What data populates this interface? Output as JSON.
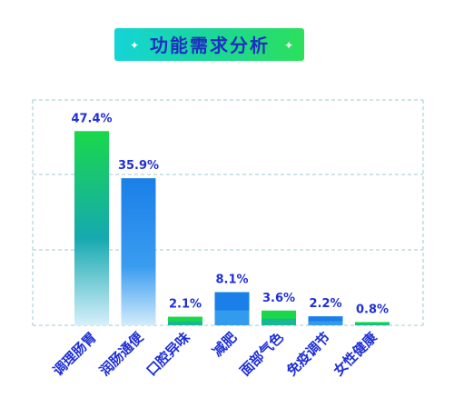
{
  "chart_data": {
    "type": "bar",
    "title": "功能需求分析",
    "categories": [
      "调理肠胃",
      "润肠通便",
      "口腔异味",
      "减肥",
      "面部气色",
      "免疫调节",
      "女性健康"
    ],
    "values": [
      47.4,
      35.9,
      2.1,
      8.1,
      3.6,
      2.2,
      0.8
    ],
    "value_labels": [
      "47.4%",
      "35.9%",
      "2.1%",
      "8.1%",
      "3.6%",
      "2.2%",
      "0.8%"
    ],
    "series_style": [
      "green",
      "blue",
      "green",
      "blue",
      "green",
      "blue",
      "green"
    ],
    "unit": "%",
    "ylim": [
      0,
      55
    ],
    "grid": true,
    "legend": "none",
    "colors": {
      "green": "#19d84a",
      "blue": "#1a7fe8",
      "teal": "#16a9b0",
      "label": "#1f2fd6",
      "grid": "#9fc8cf",
      "title_text": "#1e2fbf",
      "title_left": "#14d4d8",
      "title_right": "#2ce05a"
    }
  }
}
